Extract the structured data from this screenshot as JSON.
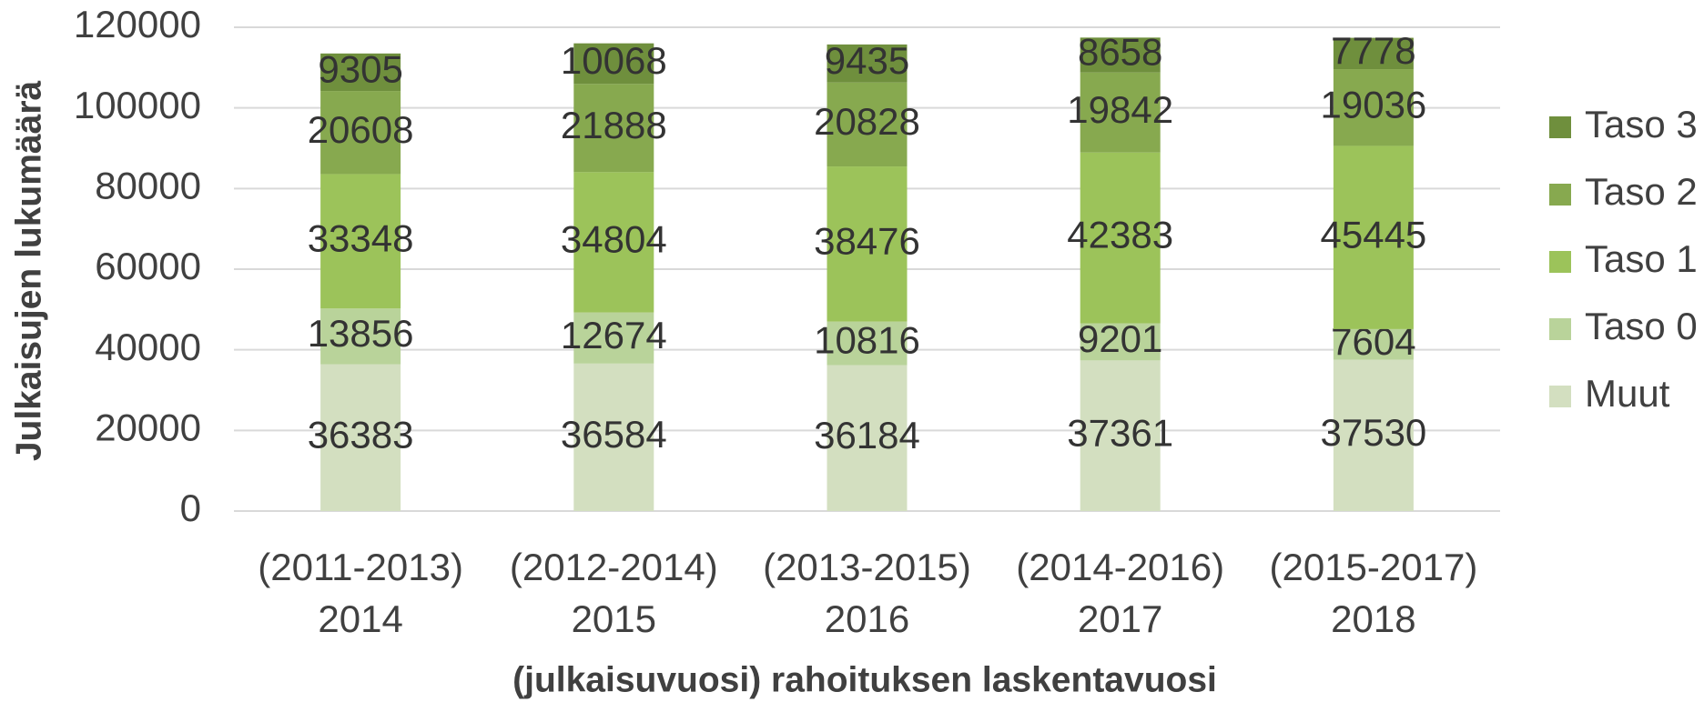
{
  "chart_data": {
    "type": "stacked_bar",
    "categories": [
      [
        "(2011-2013)",
        "2014"
      ],
      [
        "(2012-2014)",
        "2015"
      ],
      [
        "(2013-2015)",
        "2016"
      ],
      [
        "(2014-2016)",
        "2017"
      ],
      [
        "(2015-2017)",
        "2018"
      ]
    ],
    "series": [
      {
        "name": "Muut",
        "color": "#d3dfc0",
        "values": [
          36383,
          36584,
          36184,
          37361,
          37530
        ]
      },
      {
        "name": "Taso 0",
        "color": "#b9d39a",
        "values": [
          13856,
          12674,
          10816,
          9201,
          7604
        ]
      },
      {
        "name": "Taso 1",
        "color": "#9cc35a",
        "values": [
          33348,
          34804,
          38476,
          42383,
          45445
        ]
      },
      {
        "name": "Taso 2",
        "color": "#87a94f",
        "values": [
          20608,
          21888,
          20828,
          19842,
          19036
        ]
      },
      {
        "name": "Taso 3",
        "color": "#6f8f3d",
        "values": [
          9305,
          10068,
          9435,
          8658,
          7778
        ]
      }
    ],
    "xlabel": "(julkaisuvuosi) rahoituksen laskentavuosi",
    "ylabel": "Julkaisujen lukumäärä",
    "ylim": [
      0,
      120000
    ],
    "yticks": [
      0,
      20000,
      40000,
      60000,
      80000,
      100000,
      120000
    ],
    "grid": true,
    "legend": "right"
  }
}
